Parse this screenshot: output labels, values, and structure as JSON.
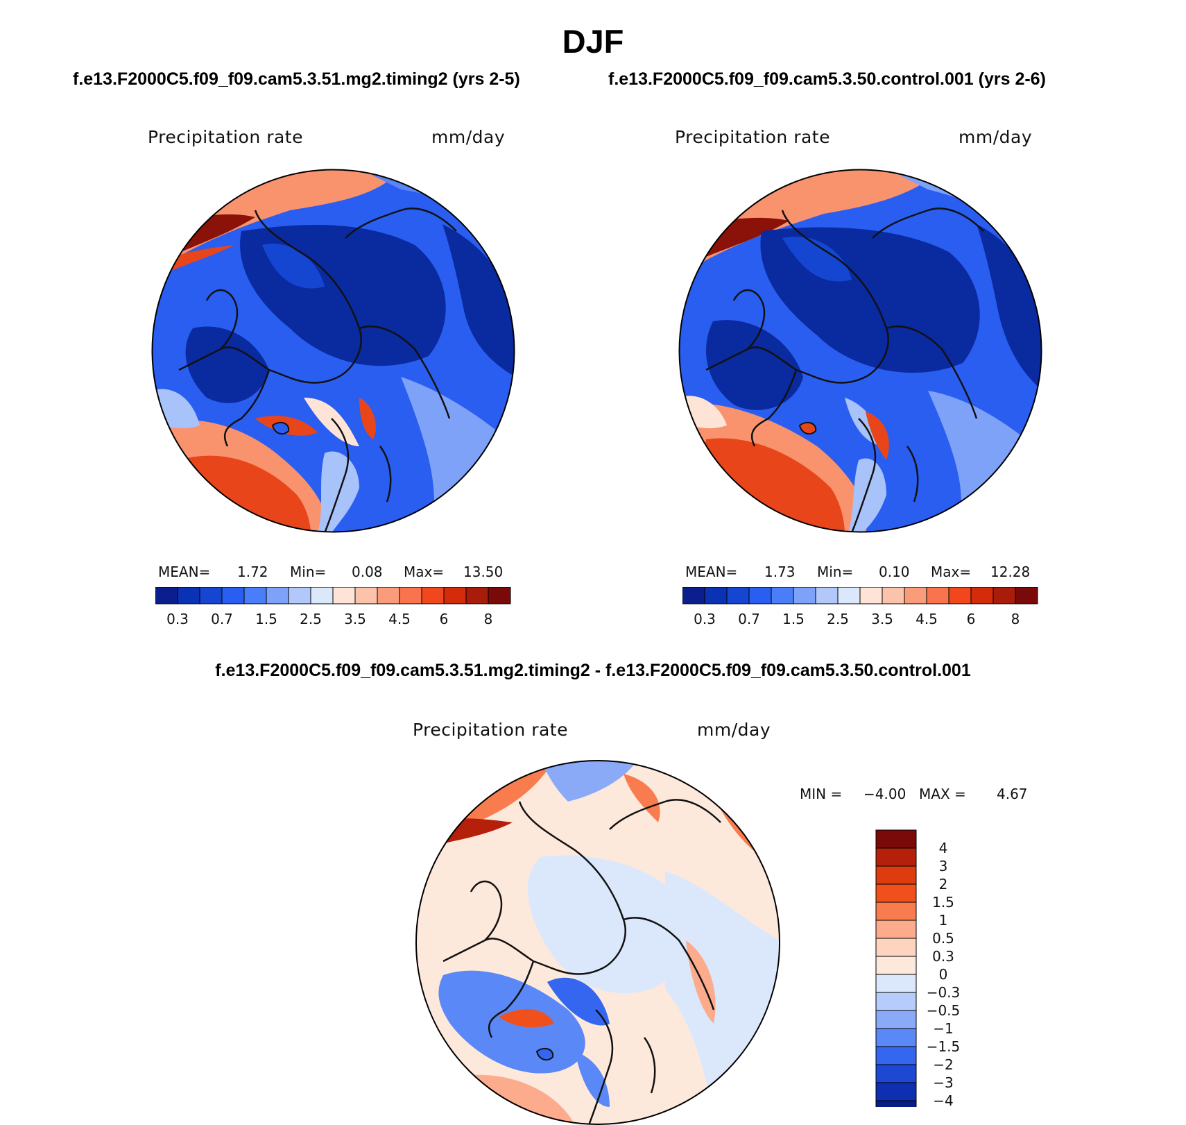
{
  "title": "DJF",
  "panels": [
    {
      "case": "f.e13.F2000C5.f09_f09.cam5.3.51.mg2.timing2 (yrs 2-5)",
      "variable": "Precipitation rate",
      "units": "mm/day",
      "stats": {
        "mean_label": "MEAN=",
        "mean": "1.72",
        "min_label": "Min=",
        "min": "0.08",
        "max_label": "Max=",
        "max": "13.50"
      }
    },
    {
      "case": "f.e13.F2000C5.f09_f09.cam5.3.50.control.001 (yrs 2-6)",
      "variable": "Precipitation rate",
      "units": "mm/day",
      "stats": {
        "mean_label": "MEAN=",
        "mean": "1.73",
        "min_label": "Min=",
        "min": "0.10",
        "max_label": "Max=",
        "max": "12.28"
      }
    }
  ],
  "difference": {
    "title": "f.e13.F2000C5.f09_f09.cam5.3.51.mg2.timing2 - f.e13.F2000C5.f09_f09.cam5.3.50.control.001",
    "variable": "Precipitation rate",
    "units": "mm/day",
    "min_label": "MIN =",
    "min": "−4.00",
    "max_label": "MAX =",
    "max": "4.67"
  },
  "colorbar_precip": {
    "colors": [
      "#0a1e8c",
      "#0a32b4",
      "#1446d2",
      "#2a5ef0",
      "#4a7ef8",
      "#7da2f8",
      "#b2c8fa",
      "#dbe8fc",
      "#fde4d6",
      "#fcc3ab",
      "#fa9c7c",
      "#f8744e",
      "#f0481c",
      "#d42c0a",
      "#aa1c0a",
      "#7a0a0a"
    ],
    "labels": [
      "0.3",
      "0.7",
      "1.5",
      "2.5",
      "3.5",
      "4.5",
      "6",
      "8"
    ]
  },
  "colorbar_diff": {
    "colors": [
      "#7a0a0a",
      "#b4200a",
      "#dc3c0e",
      "#f0501c",
      "#f87c4e",
      "#fcac8c",
      "#fcd4c0",
      "#fde8dc",
      "#dbe8fc",
      "#b6ccfa",
      "#8aaaf8",
      "#5a88f6",
      "#3466f0",
      "#1c48d4",
      "#0e30b0",
      "#081c84"
    ],
    "labels": [
      "4",
      "3",
      "2",
      "1.5",
      "1",
      "0.5",
      "0.3",
      "0",
      "−0.3",
      "−0.5",
      "−1",
      "−1.5",
      "−2",
      "−3",
      "−4"
    ]
  },
  "maps": {
    "palette": {
      "deep_blue": "#0a2aa0",
      "blue": "#2a5ef0",
      "mid_blue": "#5a86f4",
      "light_blue": "#a8c2fa",
      "pale": "#fde4d6",
      "salmon": "#f8936e",
      "orange_red": "#e8461a",
      "dark_red": "#8a1208",
      "land_line": "#111111"
    }
  }
}
